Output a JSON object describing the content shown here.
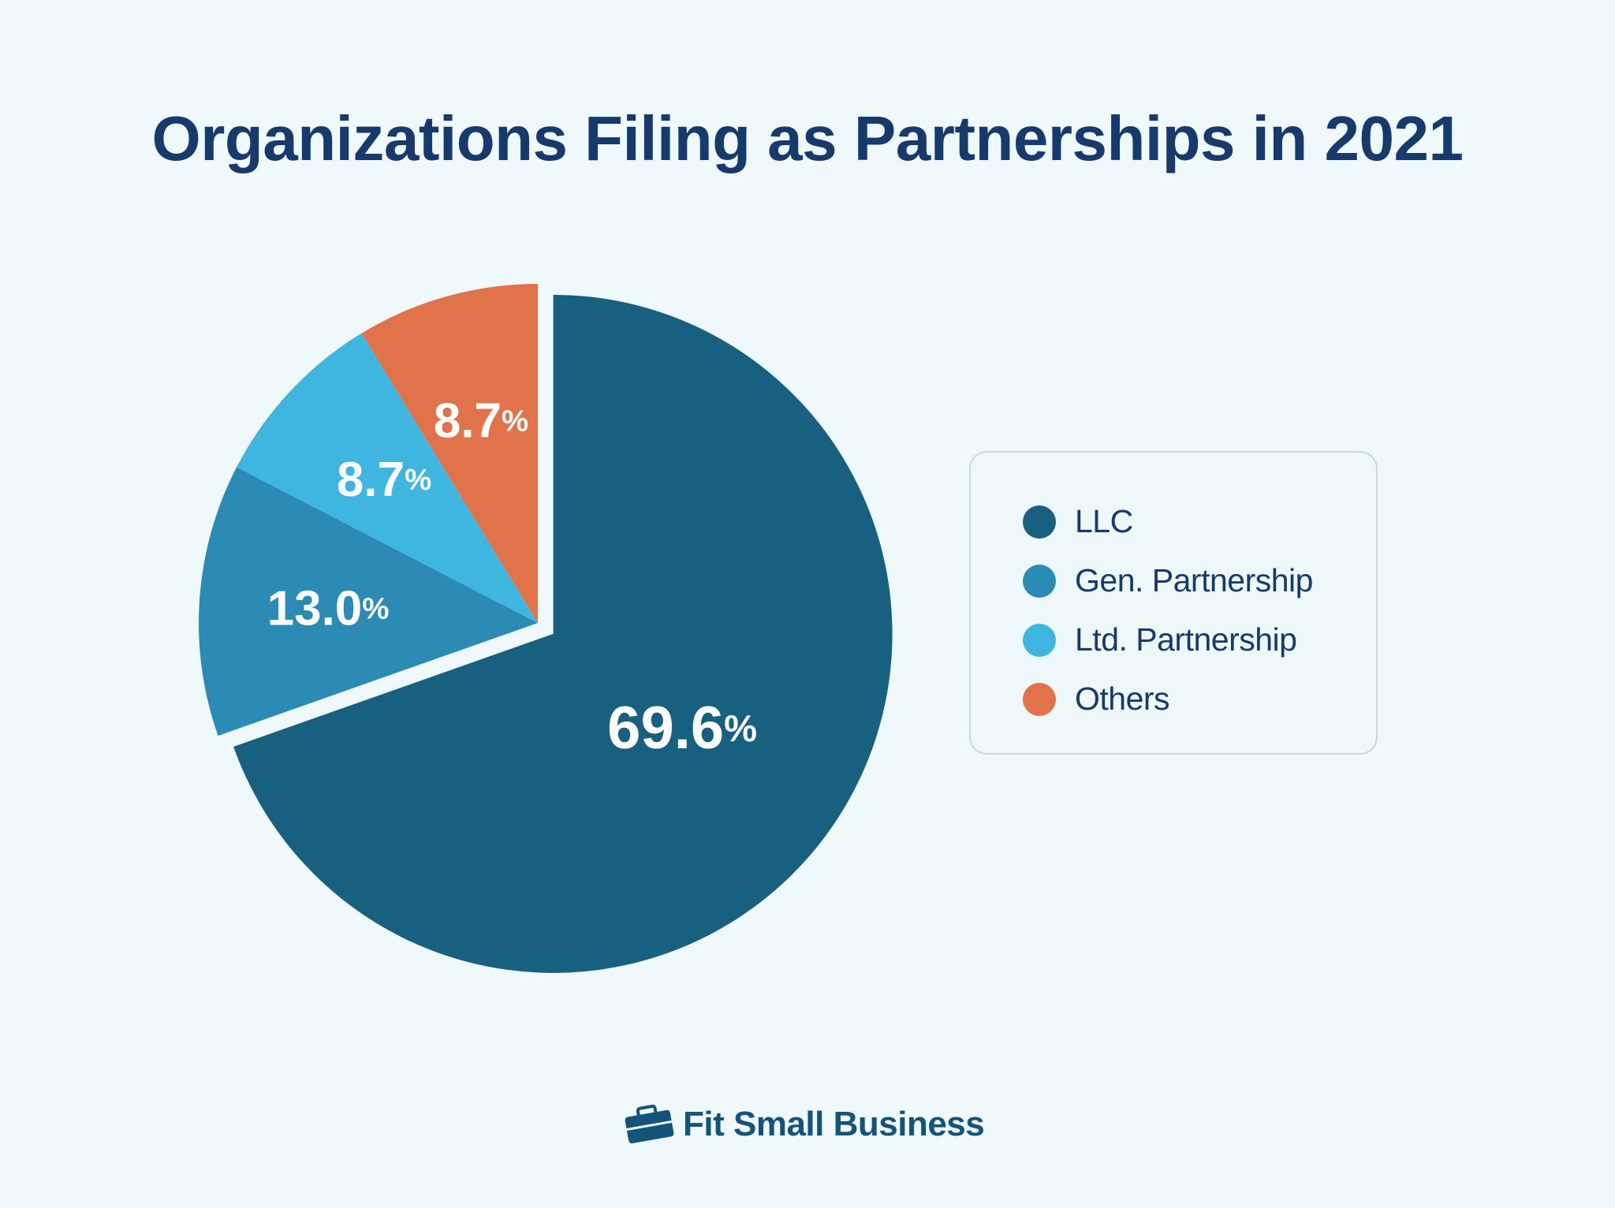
{
  "chart_data": {
    "type": "pie",
    "title": "Organizations Filing as Partnerships in 2021",
    "slices": [
      {
        "label": "LLC",
        "value": 69.6,
        "display": "69.6",
        "color": "#17607f",
        "exploded": true
      },
      {
        "label": "Gen. Partnership",
        "value": 13.0,
        "display": "13.0",
        "color": "#2b8bb4",
        "exploded": false
      },
      {
        "label": "Ltd. Partnership",
        "value": 8.7,
        "display": "8.7",
        "color": "#3fb6e0",
        "exploded": false
      },
      {
        "label": "Others",
        "value": 8.7,
        "display": "8.7",
        "color": "#e0734a",
        "exploded": false
      }
    ],
    "value_suffix": "%",
    "legend_position": "right"
  },
  "brand": {
    "name": "Fit Small Business",
    "icon": "briefcase-icon",
    "color": "#14537a"
  }
}
